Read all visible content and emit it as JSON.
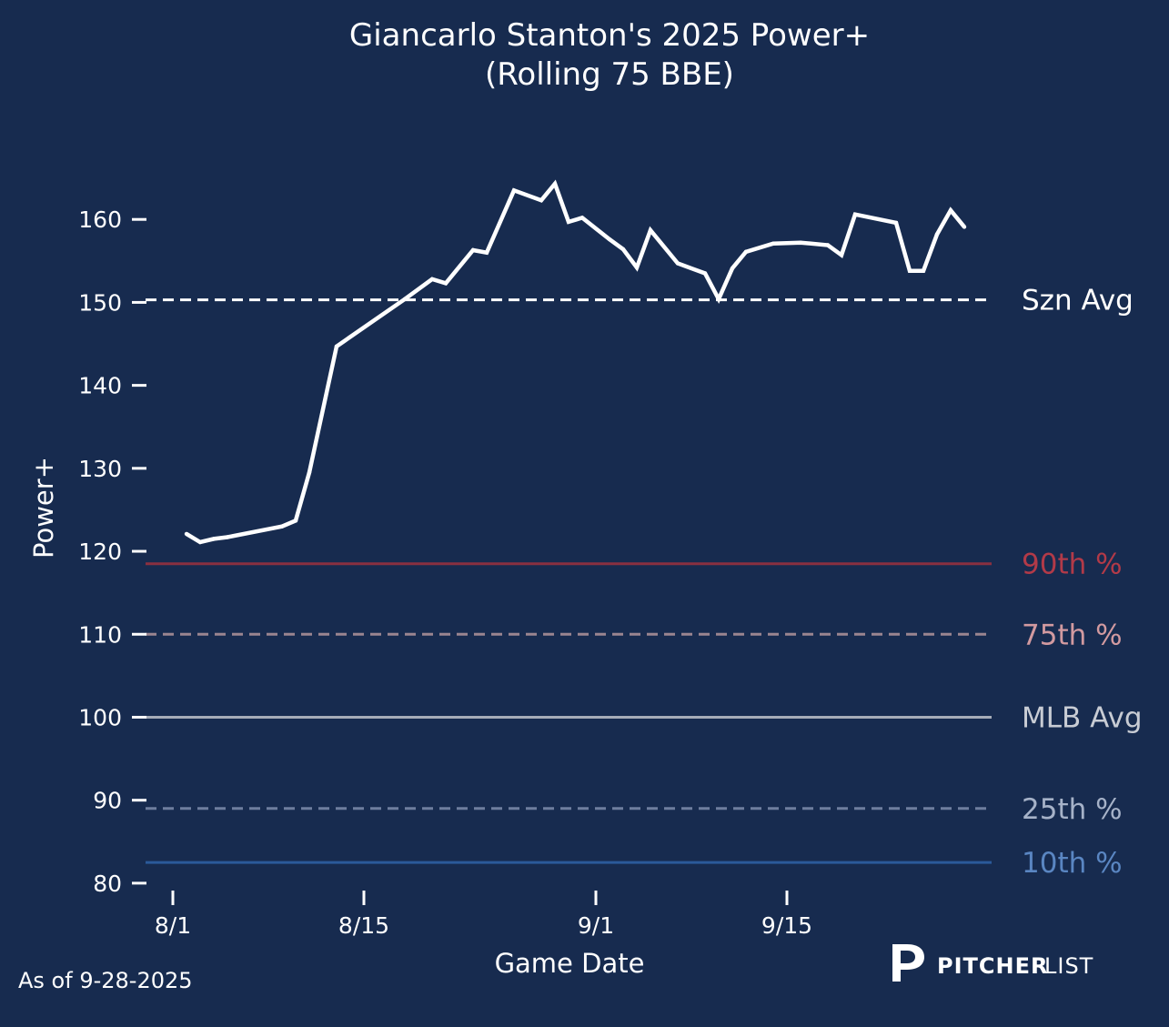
{
  "chart_data": {
    "type": "line",
    "title": "Giancarlo Stanton's 2025 Power+",
    "subtitle": "(Rolling 75 BBE)",
    "xlabel": "Game Date",
    "ylabel": "Power+",
    "ylim": [
      79,
      170
    ],
    "xlim": [
      "2025-07-30",
      "2025-09-30"
    ],
    "yticks": [
      80,
      90,
      100,
      110,
      120,
      130,
      140,
      150,
      160
    ],
    "xticks": [
      {
        "date": "2025-08-01",
        "label": "8/1"
      },
      {
        "date": "2025-08-15",
        "label": "8/15"
      },
      {
        "date": "2025-09-01",
        "label": "9/1"
      },
      {
        "date": "2025-09-15",
        "label": "9/15"
      }
    ],
    "grid": false,
    "series": [
      {
        "color": "#ffffff",
        "points": [
          [
            "2025-08-02",
            122.1
          ],
          [
            "2025-08-03",
            121.1
          ],
          [
            "2025-08-04",
            121.5
          ],
          [
            "2025-08-05",
            121.7
          ],
          [
            "2025-08-09",
            123.0
          ],
          [
            "2025-08-10",
            123.7
          ],
          [
            "2025-08-11",
            129.5
          ],
          [
            "2025-08-13",
            144.7
          ],
          [
            "2025-08-18",
            150.4
          ],
          [
            "2025-08-20",
            152.8
          ],
          [
            "2025-08-21",
            152.3
          ],
          [
            "2025-08-23",
            156.3
          ],
          [
            "2025-08-24",
            156.0
          ],
          [
            "2025-08-26",
            163.5
          ],
          [
            "2025-08-28",
            162.3
          ],
          [
            "2025-08-29",
            164.3
          ],
          [
            "2025-08-30",
            159.7
          ],
          [
            "2025-08-31",
            160.2
          ],
          [
            "2025-09-02",
            157.6
          ],
          [
            "2025-09-03",
            156.4
          ],
          [
            "2025-09-04",
            154.2
          ],
          [
            "2025-09-05",
            158.7
          ],
          [
            "2025-09-07",
            154.7
          ],
          [
            "2025-09-09",
            153.5
          ],
          [
            "2025-09-10",
            150.4
          ],
          [
            "2025-09-11",
            154.1
          ],
          [
            "2025-09-12",
            156.1
          ],
          [
            "2025-09-14",
            157.1
          ],
          [
            "2025-09-16",
            157.2
          ],
          [
            "2025-09-18",
            156.9
          ],
          [
            "2025-09-19",
            155.7
          ],
          [
            "2025-09-20",
            160.6
          ],
          [
            "2025-09-23",
            159.6
          ],
          [
            "2025-09-24",
            153.8
          ],
          [
            "2025-09-25",
            153.8
          ],
          [
            "2025-09-26",
            158.2
          ],
          [
            "2025-09-27",
            161.1
          ],
          [
            "2025-09-28",
            159.1
          ]
        ]
      }
    ],
    "reference_lines": [
      {
        "label": "Szn Avg",
        "value": 150.3,
        "color": "#ffffff",
        "label_color": "#ffffff",
        "dashed": true
      },
      {
        "label": "90th %",
        "value": 118.5,
        "color": "#8a3040",
        "label_color": "#b23a48",
        "dashed": false
      },
      {
        "label": "75th %",
        "value": 110.0,
        "color": "#9a8590",
        "label_color": "#d29aa0",
        "dashed": true
      },
      {
        "label": "MLB Avg",
        "value": 100.0,
        "color": "#a6acb8",
        "label_color": "#c8ccd4",
        "dashed": false
      },
      {
        "label": "25th %",
        "value": 89.0,
        "color": "#6e7e9e",
        "label_color": "#a6b2c8",
        "dashed": true
      },
      {
        "label": "10th %",
        "value": 82.5,
        "color": "#2b5a9a",
        "label_color": "#5a86c2",
        "dashed": false
      }
    ]
  },
  "footer": {
    "as_of": "As of 9-28-2025",
    "brand_strong": "PITCHER",
    "brand_light": "LIST",
    "logo_icon": "pitcherlist-p-icon"
  },
  "colors": {
    "background": "#172b4f",
    "text": "#ffffff"
  }
}
